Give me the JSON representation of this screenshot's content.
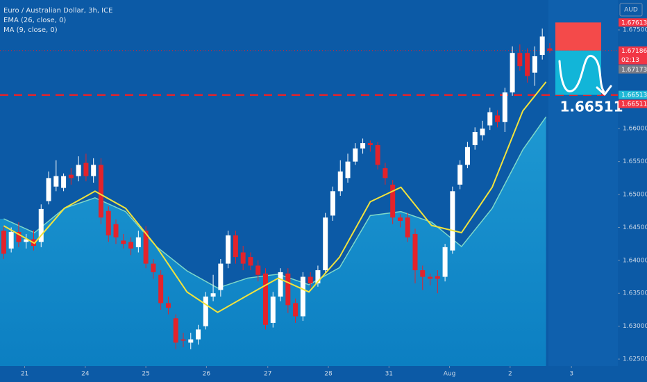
{
  "chart_data": {
    "type": "candlestick",
    "title": "Euro / Australian Dollar, 3h, ICE",
    "currency": "AUD",
    "up_color": "#ffffff",
    "down_color": "#e3232b",
    "open": [
      1.6445,
      1.6418,
      1.6443,
      1.6428,
      1.6432,
      1.6428,
      1.649,
      1.6512,
      1.651,
      1.653,
      1.6528,
      1.6548,
      1.6528,
      1.6545,
      1.6475,
      1.6455,
      1.643,
      1.6428,
      1.642,
      1.6445,
      1.6395,
      1.6378,
      1.6335,
      1.6312,
      1.628,
      1.6275,
      1.628,
      1.63,
      1.6345,
      1.6355,
      1.6395,
      1.6438,
      1.6412,
      1.6405,
      1.6392,
      1.638,
      1.6305,
      1.6345,
      1.638,
      1.6335,
      1.6315,
      1.6375,
      1.6365,
      1.6385,
      1.6468,
      1.6505,
      1.6525,
      1.655,
      1.657,
      1.6578,
      1.6575,
      1.654,
      1.6515,
      1.6465,
      1.6465,
      1.644,
      1.6385,
      1.6375,
      1.6376,
      1.6375,
      1.6415,
      1.6515,
      1.6545,
      1.6575,
      1.659,
      1.6605,
      1.662,
      1.661,
      1.6655,
      1.6715,
      1.6715,
      1.6685,
      1.6712,
      1.6722
    ],
    "high": [
      1.6452,
      1.645,
      1.6458,
      1.644,
      1.6446,
      1.6485,
      1.6535,
      1.6552,
      1.6532,
      1.654,
      1.6558,
      1.6562,
      1.6555,
      1.6555,
      1.6482,
      1.6462,
      1.644,
      1.6435,
      1.6445,
      1.6452,
      1.6402,
      1.6385,
      1.6345,
      1.6318,
      1.629,
      1.629,
      1.6302,
      1.6352,
      1.6378,
      1.6402,
      1.6445,
      1.6445,
      1.6422,
      1.6412,
      1.64,
      1.6388,
      1.6352,
      1.6388,
      1.6388,
      1.6342,
      1.6382,
      1.6382,
      1.6392,
      1.6472,
      1.6512,
      1.6552,
      1.6562,
      1.6578,
      1.6585,
      1.6582,
      1.658,
      1.6548,
      1.6522,
      1.647,
      1.6472,
      1.6448,
      1.6392,
      1.638,
      1.6385,
      1.6425,
      1.6512,
      1.6552,
      1.658,
      1.6602,
      1.6612,
      1.6632,
      1.6628,
      1.6662,
      1.6725,
      1.6728,
      1.6722,
      1.6725,
      1.6752,
      1.673
    ],
    "low": [
      1.6402,
      1.6412,
      1.642,
      1.6418,
      1.6415,
      1.642,
      1.6485,
      1.6505,
      1.6505,
      1.6515,
      1.652,
      1.652,
      1.6518,
      1.6455,
      1.6428,
      1.6425,
      1.6418,
      1.6408,
      1.6412,
      1.6388,
      1.6372,
      1.6325,
      1.6318,
      1.6265,
      1.6268,
      1.6265,
      1.6272,
      1.6295,
      1.6338,
      1.6345,
      1.6388,
      1.6395,
      1.6385,
      1.6385,
      1.6368,
      1.6295,
      1.6298,
      1.6338,
      1.632,
      1.6305,
      1.6308,
      1.6358,
      1.636,
      1.638,
      1.646,
      1.6498,
      1.6518,
      1.6545,
      1.6562,
      1.6565,
      1.6538,
      1.6515,
      1.6455,
      1.645,
      1.6428,
      1.6365,
      1.6355,
      1.6362,
      1.635,
      1.6368,
      1.641,
      1.6508,
      1.654,
      1.6568,
      1.6582,
      1.6598,
      1.6602,
      1.6595,
      1.665,
      1.6688,
      1.667,
      1.6665,
      1.6705,
      1.6715
    ],
    "close": [
      1.641,
      1.6443,
      1.6428,
      1.6432,
      1.6422,
      1.6478,
      1.6525,
      1.6528,
      1.6528,
      1.6525,
      1.6545,
      1.6528,
      1.6545,
      1.6465,
      1.6438,
      1.6435,
      1.6425,
      1.6418,
      1.6435,
      1.6395,
      1.6382,
      1.6335,
      1.6328,
      1.6275,
      1.6278,
      1.628,
      1.6295,
      1.6345,
      1.635,
      1.6395,
      1.6438,
      1.6405,
      1.6395,
      1.6392,
      1.6378,
      1.6302,
      1.6345,
      1.6382,
      1.6332,
      1.6315,
      1.6375,
      1.6365,
      1.6385,
      1.6465,
      1.6505,
      1.6535,
      1.655,
      1.657,
      1.6578,
      1.6575,
      1.6545,
      1.6525,
      1.6465,
      1.646,
      1.6435,
      1.6385,
      1.6375,
      1.6372,
      1.6372,
      1.642,
      1.6505,
      1.6545,
      1.6572,
      1.6595,
      1.66,
      1.6625,
      1.661,
      1.6655,
      1.6715,
      1.6695,
      1.668,
      1.671,
      1.674,
      1.67186
    ],
    "ema": {
      "name": "EMA (26, close, 0)",
      "color": "#f2e33c",
      "x": [
        0,
        4.1,
        8.1,
        12.2,
        16.3,
        20.4,
        24.5,
        28.6,
        32.6,
        36.7,
        40.8,
        44.9,
        49,
        53.1,
        57.2,
        61.2,
        65.3,
        69.4,
        72.5
      ],
      "values": [
        1.64525,
        1.6426,
        1.6479,
        1.6505,
        1.6479,
        1.6421,
        1.6352,
        1.6321,
        1.6347,
        1.6373,
        1.6352,
        1.6405,
        1.6489,
        1.6511,
        1.6453,
        1.6442,
        1.6511,
        1.6627,
        1.6671
      ]
    },
    "ma": {
      "name": "MA (9, close, 0)",
      "color": "#1e98d2",
      "x": [
        0,
        4.1,
        8.1,
        12.2,
        16.3,
        20.4,
        24.5,
        28.6,
        32.6,
        36.7,
        40.8,
        44.9,
        49,
        53.1,
        57.2,
        61.2,
        65.3,
        69.4,
        72.5
      ],
      "values": [
        1.6463,
        1.6442,
        1.6479,
        1.6495,
        1.6474,
        1.6421,
        1.6384,
        1.6358,
        1.6373,
        1.6379,
        1.6363,
        1.6389,
        1.6468,
        1.6474,
        1.6458,
        1.6421,
        1.6479,
        1.6568,
        1.6618
      ]
    },
    "xlim": [
      -0.5,
      82.1
    ],
    "ylim": [
      1.62395,
      1.67954
    ],
    "xticks": [
      {
        "value": 2.8,
        "label": "21"
      },
      {
        "value": 10.9,
        "label": "24"
      },
      {
        "value": 19,
        "label": "25"
      },
      {
        "value": 27.1,
        "label": "26"
      },
      {
        "value": 35.3,
        "label": "27"
      },
      {
        "value": 43.4,
        "label": "28"
      },
      {
        "value": 51.5,
        "label": "31"
      },
      {
        "value": 59.6,
        "label": "Aug"
      },
      {
        "value": 67.7,
        "label": "2"
      },
      {
        "value": 75.9,
        "label": "3"
      }
    ],
    "yticks": [
      {
        "value": 1.625,
        "label": "1.62500"
      },
      {
        "value": 1.63,
        "label": "1.63000"
      },
      {
        "value": 1.635,
        "label": "1.63500"
      },
      {
        "value": 1.64,
        "label": "1.64000"
      },
      {
        "value": 1.645,
        "label": "1.64500"
      },
      {
        "value": 1.65,
        "label": "1.65000"
      },
      {
        "value": 1.655,
        "label": "1.65500"
      },
      {
        "value": 1.66,
        "label": "1.66000"
      },
      {
        "value": 1.675,
        "label": "1.67500"
      }
    ],
    "level": 1.66511,
    "annotation": "1.66511",
    "position": {
      "stop": 1.67613,
      "entry": 1.67186,
      "target": 1.66513
    },
    "price_tags": [
      {
        "value": 1.67613,
        "color": "#f23645"
      },
      {
        "value": 1.67186,
        "color": "#f23645",
        "countdown": "02:13"
      },
      {
        "value": 1.67173,
        "color": "#787b86"
      },
      {
        "value": 1.66513,
        "color": "#1fb8d6"
      },
      {
        "value": 1.66511,
        "color": "#f23645"
      }
    ]
  }
}
